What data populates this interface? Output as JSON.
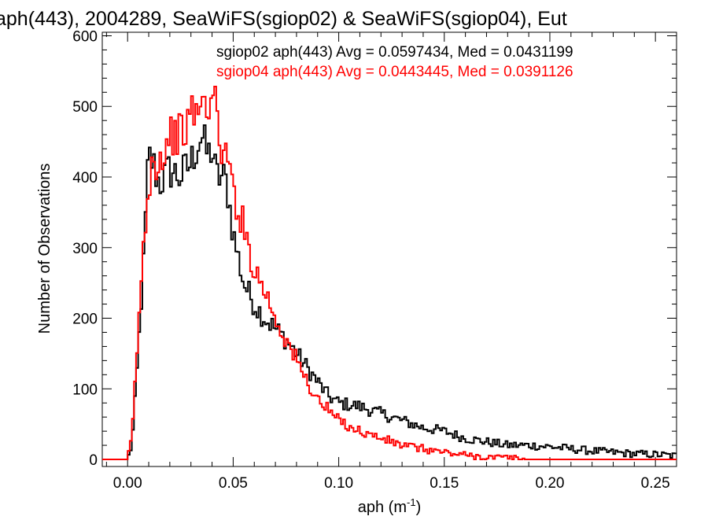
{
  "chart_data": {
    "type": "line",
    "title": "aph(443), 2004289, SeaWiFS(sgiop02) & SeaWiFS(sgiop04), Eut",
    "xlabel": "aph (m",
    "xlabel_sup": "-1",
    "xlabel_close": ")",
    "ylabel": "Number of Observations",
    "xlim": [
      -0.012,
      0.26
    ],
    "ylim": [
      -10,
      605
    ],
    "xticks": [
      0.0,
      0.05,
      0.1,
      0.15,
      0.2,
      0.25
    ],
    "xtick_labels": [
      "0.00",
      "0.05",
      "0.10",
      "0.15",
      "0.20",
      "0.25"
    ],
    "yticks": [
      0,
      100,
      200,
      300,
      400,
      500,
      600
    ],
    "ytick_labels": [
      "0",
      "100",
      "200",
      "300",
      "400",
      "500",
      "600"
    ],
    "legend_position": "top-right",
    "series": [
      {
        "name": "sgiop02 aph(443) Avg = 0.0597434, Med = 0.0431199",
        "color": "#000000",
        "points": [
          [
            -0.012,
            0
          ],
          [
            0.0,
            0
          ],
          [
            0.002,
            20
          ],
          [
            0.004,
            100
          ],
          [
            0.006,
            200
          ],
          [
            0.008,
            300
          ],
          [
            0.009,
            380
          ],
          [
            0.01,
            430
          ],
          [
            0.012,
            420
          ],
          [
            0.015,
            390
          ],
          [
            0.02,
            410
          ],
          [
            0.025,
            400
          ],
          [
            0.03,
            420
          ],
          [
            0.035,
            460
          ],
          [
            0.038,
            430
          ],
          [
            0.04,
            440
          ],
          [
            0.042,
            400
          ],
          [
            0.045,
            400
          ],
          [
            0.047,
            390
          ],
          [
            0.05,
            320
          ],
          [
            0.055,
            250
          ],
          [
            0.06,
            220
          ],
          [
            0.065,
            200
          ],
          [
            0.07,
            185
          ],
          [
            0.075,
            170
          ],
          [
            0.08,
            150
          ],
          [
            0.085,
            130
          ],
          [
            0.09,
            110
          ],
          [
            0.095,
            90
          ],
          [
            0.1,
            80
          ],
          [
            0.11,
            75
          ],
          [
            0.12,
            65
          ],
          [
            0.13,
            55
          ],
          [
            0.14,
            45
          ],
          [
            0.15,
            40
          ],
          [
            0.16,
            30
          ],
          [
            0.17,
            25
          ],
          [
            0.18,
            20
          ],
          [
            0.19,
            20
          ],
          [
            0.2,
            18
          ],
          [
            0.21,
            15
          ],
          [
            0.22,
            12
          ],
          [
            0.23,
            10
          ],
          [
            0.24,
            8
          ],
          [
            0.25,
            7
          ],
          [
            0.26,
            5
          ]
        ]
      },
      {
        "name": "sgiop04 aph(443) Avg = 0.0443445, Med = 0.0391126",
        "color": "#ff0000",
        "points": [
          [
            -0.012,
            0
          ],
          [
            0.0,
            0
          ],
          [
            0.002,
            30
          ],
          [
            0.004,
            130
          ],
          [
            0.006,
            230
          ],
          [
            0.008,
            320
          ],
          [
            0.01,
            390
          ],
          [
            0.012,
            430
          ],
          [
            0.015,
            420
          ],
          [
            0.02,
            460
          ],
          [
            0.025,
            460
          ],
          [
            0.028,
            470
          ],
          [
            0.03,
            490
          ],
          [
            0.033,
            495
          ],
          [
            0.036,
            500
          ],
          [
            0.039,
            510
          ],
          [
            0.042,
            500
          ],
          [
            0.045,
            430
          ],
          [
            0.048,
            420
          ],
          [
            0.05,
            380
          ],
          [
            0.055,
            330
          ],
          [
            0.06,
            270
          ],
          [
            0.065,
            240
          ],
          [
            0.07,
            200
          ],
          [
            0.075,
            170
          ],
          [
            0.08,
            140
          ],
          [
            0.085,
            110
          ],
          [
            0.09,
            85
          ],
          [
            0.095,
            70
          ],
          [
            0.1,
            55
          ],
          [
            0.11,
            40
          ],
          [
            0.12,
            30
          ],
          [
            0.13,
            20
          ],
          [
            0.14,
            15
          ],
          [
            0.15,
            10
          ],
          [
            0.16,
            6
          ],
          [
            0.17,
            3
          ],
          [
            0.18,
            2
          ],
          [
            0.19,
            0
          ],
          [
            0.2,
            0
          ],
          [
            0.26,
            0
          ]
        ]
      }
    ]
  }
}
